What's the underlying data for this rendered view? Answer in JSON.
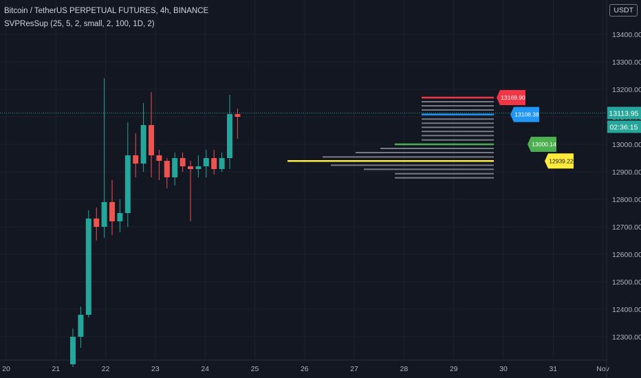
{
  "header": {
    "title": "Bitcoin / TetherUS PERPETUAL FUTURES, 4h, BINANCE",
    "indicator": "SVPResSup (25, 5, 2, small, 2, 100, 1D, 2)"
  },
  "currency": "USDT",
  "price_badge": {
    "value": "13113.95",
    "countdown": "02:36:15"
  },
  "colors": {
    "bg": "#131722",
    "up": "#26a69a",
    "down": "#ef5350",
    "grid": "#1e222d",
    "axis_text": "#b2b5be",
    "profile": "#787b86",
    "res_red": "#f23645",
    "res_blue": "#2196f3",
    "sup_green": "#4caf50",
    "sup_yellow": "#ffeb3b"
  },
  "chart_data": {
    "type": "candlestick",
    "yticks": [
      "13400.00",
      "13300.00",
      "13200.00",
      "13100.00",
      "13000.00",
      "12900.00",
      "12800.00",
      "12700.00",
      "12600.00",
      "12500.00",
      "12400.00",
      "12300.00"
    ],
    "xticks": [
      "20",
      "21",
      "22",
      "23",
      "24",
      "25",
      "26",
      "27",
      "28",
      "29",
      "30",
      "31",
      "Nov"
    ],
    "candles": [
      {
        "o": 12200,
        "h": 12330,
        "l": 12190,
        "c": 12300
      },
      {
        "o": 12300,
        "h": 12410,
        "l": 12260,
        "c": 12380
      },
      {
        "o": 12380,
        "h": 12760,
        "l": 12370,
        "c": 12730
      },
      {
        "o": 12730,
        "h": 12770,
        "l": 12650,
        "c": 12700
      },
      {
        "o": 12700,
        "h": 13240,
        "l": 12660,
        "c": 12790
      },
      {
        "o": 12790,
        "h": 12870,
        "l": 12670,
        "c": 12720
      },
      {
        "o": 12720,
        "h": 12800,
        "l": 12680,
        "c": 12750
      },
      {
        "o": 12750,
        "h": 13080,
        "l": 12700,
        "c": 12960
      },
      {
        "o": 12960,
        "h": 13040,
        "l": 12880,
        "c": 12930
      },
      {
        "o": 12930,
        "h": 13150,
        "l": 12900,
        "c": 13070
      },
      {
        "o": 13070,
        "h": 13190,
        "l": 12880,
        "c": 12960
      },
      {
        "o": 12960,
        "h": 12980,
        "l": 12870,
        "c": 12940
      },
      {
        "o": 12940,
        "h": 12950,
        "l": 12840,
        "c": 12880
      },
      {
        "o": 12880,
        "h": 12970,
        "l": 12850,
        "c": 12950
      },
      {
        "o": 12950,
        "h": 12970,
        "l": 12900,
        "c": 12920
      },
      {
        "o": 12920,
        "h": 12940,
        "l": 12720,
        "c": 12910
      },
      {
        "o": 12910,
        "h": 12960,
        "l": 12880,
        "c": 12920
      },
      {
        "o": 12920,
        "h": 12980,
        "l": 12880,
        "c": 12950
      },
      {
        "o": 12950,
        "h": 12980,
        "l": 12890,
        "c": 12910
      },
      {
        "o": 12910,
        "h": 12970,
        "l": 12900,
        "c": 12950
      },
      {
        "o": 12950,
        "h": 13180,
        "l": 12910,
        "c": 13110
      },
      {
        "o": 13110,
        "h": 13130,
        "l": 13020,
        "c": 13100
      }
    ],
    "volume_profile": [
      {
        "price": 13169.9,
        "len": 0.35,
        "color": "res_red"
      },
      {
        "price": 13155,
        "len": 0.35
      },
      {
        "price": 13140,
        "len": 0.35
      },
      {
        "price": 13125,
        "len": 0.35
      },
      {
        "price": 13108.38,
        "len": 0.35,
        "color": "res_blue"
      },
      {
        "price": 13092,
        "len": 0.35
      },
      {
        "price": 13077,
        "len": 0.35
      },
      {
        "price": 13062,
        "len": 0.35
      },
      {
        "price": 13047,
        "len": 0.35
      },
      {
        "price": 13032,
        "len": 0.35
      },
      {
        "price": 13016,
        "len": 0.35
      },
      {
        "price": 13000.14,
        "len": 0.48,
        "color": "sup_green"
      },
      {
        "price": 12985,
        "len": 0.55
      },
      {
        "price": 12970,
        "len": 0.67
      },
      {
        "price": 12954,
        "len": 0.83
      },
      {
        "price": 12939.22,
        "len": 1.0,
        "color": "sup_yellow"
      },
      {
        "price": 12924,
        "len": 0.79
      },
      {
        "price": 12909,
        "len": 0.63
      },
      {
        "price": 12893,
        "len": 0.48
      },
      {
        "price": 12878,
        "len": 0.48
      }
    ],
    "levels": [
      {
        "label": "13169.90",
        "price": 13169.9,
        "color": "res_red"
      },
      {
        "label": "13108.38",
        "price": 13108.38,
        "color": "res_blue"
      },
      {
        "label": "13000.14",
        "price": 13000.14,
        "color": "sup_green"
      },
      {
        "label": "12939.22",
        "price": 12939.22,
        "color": "sup_yellow"
      }
    ]
  }
}
